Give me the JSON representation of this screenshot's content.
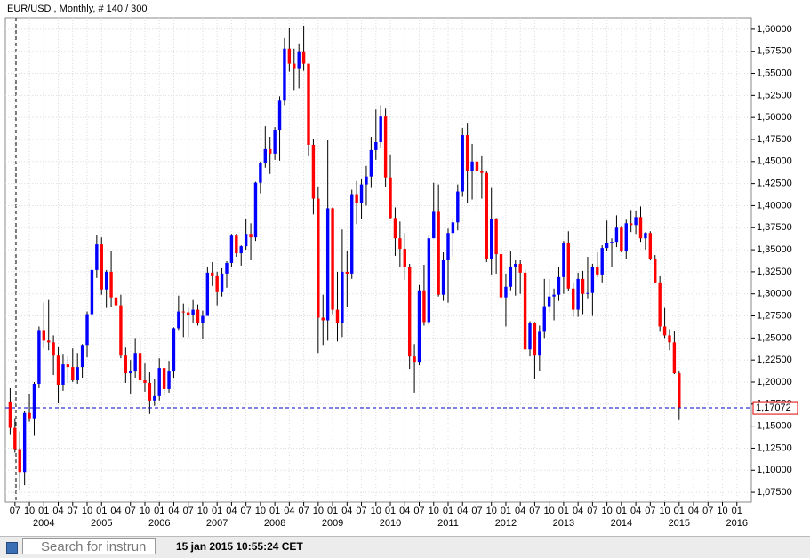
{
  "chart_data": {
    "type": "candlestick",
    "title": "EUR/USD , Monthly, # 140 / 300",
    "x": [
      "2003-06",
      "2003-07",
      "2003-08",
      "2003-09",
      "2003-10",
      "2003-11",
      "2003-12",
      "2004-01",
      "2004-02",
      "2004-03",
      "2004-04",
      "2004-05",
      "2004-06",
      "2004-07",
      "2004-08",
      "2004-09",
      "2004-10",
      "2004-11",
      "2004-12",
      "2005-01",
      "2005-02",
      "2005-03",
      "2005-04",
      "2005-05",
      "2005-06",
      "2005-07",
      "2005-08",
      "2005-09",
      "2005-10",
      "2005-11",
      "2005-12",
      "2006-01",
      "2006-02",
      "2006-03",
      "2006-04",
      "2006-05",
      "2006-06",
      "2006-07",
      "2006-08",
      "2006-09",
      "2006-10",
      "2006-11",
      "2006-12",
      "2007-01",
      "2007-02",
      "2007-03",
      "2007-04",
      "2007-05",
      "2007-06",
      "2007-07",
      "2007-08",
      "2007-09",
      "2007-10",
      "2007-11",
      "2007-12",
      "2008-01",
      "2008-02",
      "2008-03",
      "2008-04",
      "2008-05",
      "2008-06",
      "2008-07",
      "2008-08",
      "2008-09",
      "2008-10",
      "2008-11",
      "2008-12",
      "2009-01",
      "2009-02",
      "2009-03",
      "2009-04",
      "2009-05",
      "2009-06",
      "2009-07",
      "2009-08",
      "2009-09",
      "2009-10",
      "2009-11",
      "2009-12",
      "2010-01",
      "2010-02",
      "2010-03",
      "2010-04",
      "2010-05",
      "2010-06",
      "2010-07",
      "2010-08",
      "2010-09",
      "2010-10",
      "2010-11",
      "2010-12",
      "2011-01",
      "2011-02",
      "2011-03",
      "2011-04",
      "2011-05",
      "2011-06",
      "2011-07",
      "2011-08",
      "2011-09",
      "2011-10",
      "2011-11",
      "2011-12",
      "2012-01",
      "2012-02",
      "2012-03",
      "2012-04",
      "2012-05",
      "2012-06",
      "2012-07",
      "2012-08",
      "2012-09",
      "2012-10",
      "2012-11",
      "2012-12",
      "2013-01",
      "2013-02",
      "2013-03",
      "2013-04",
      "2013-05",
      "2013-06",
      "2013-07",
      "2013-08",
      "2013-09",
      "2013-10",
      "2013-11",
      "2013-12",
      "2014-01",
      "2014-02",
      "2014-03",
      "2014-04",
      "2014-05",
      "2014-06",
      "2014-07",
      "2014-08",
      "2014-09",
      "2014-10",
      "2014-11",
      "2014-12",
      "2015-01"
    ],
    "open": [
      1.178,
      1.148,
      1.124,
      1.098,
      1.165,
      1.159,
      1.198,
      1.259,
      1.247,
      1.245,
      1.23,
      1.197,
      1.22,
      1.217,
      1.202,
      1.217,
      1.242,
      1.277,
      1.327,
      1.356,
      1.305,
      1.325,
      1.296,
      1.287,
      1.23,
      1.21,
      1.212,
      1.233,
      1.202,
      1.199,
      1.179,
      1.184,
      1.216,
      1.192,
      1.212,
      1.261,
      1.28,
      1.279,
      1.276,
      1.282,
      1.267,
      1.275,
      1.324,
      1.32,
      1.302,
      1.323,
      1.335,
      1.366,
      1.346,
      1.354,
      1.368,
      1.364,
      1.426,
      1.448,
      1.464,
      1.459,
      1.486,
      1.519,
      1.578,
      1.561,
      1.555,
      1.575,
      1.561,
      1.469,
      1.408,
      1.273,
      1.27,
      1.397,
      1.282,
      1.267,
      1.325,
      1.323,
      1.413,
      1.403,
      1.424,
      1.433,
      1.463,
      1.472,
      1.501,
      1.432,
      1.386,
      1.363,
      1.351,
      1.33,
      1.229,
      1.223,
      1.304,
      1.268,
      1.363,
      1.393,
      1.299,
      1.338,
      1.369,
      1.381,
      1.416,
      1.48,
      1.439,
      1.45,
      1.439,
      1.437,
      1.339,
      1.385,
      1.345,
      1.296,
      1.308,
      1.331,
      1.334,
      1.324,
      1.237,
      1.267,
      1.23,
      1.257,
      1.286,
      1.297,
      1.299,
      1.319,
      1.358,
      1.306,
      1.282,
      1.317,
      1.3,
      1.301,
      1.33,
      1.322,
      1.352,
      1.358,
      1.359,
      1.375,
      1.348,
      1.38,
      1.378,
      1.387,
      1.363,
      1.369,
      1.339,
      1.313,
      1.263,
      1.253,
      1.245,
      1.21
    ],
    "high": [
      1.193,
      1.159,
      1.144,
      1.167,
      1.187,
      1.2,
      1.263,
      1.29,
      1.293,
      1.253,
      1.24,
      1.232,
      1.229,
      1.238,
      1.233,
      1.243,
      1.28,
      1.33,
      1.367,
      1.364,
      1.327,
      1.349,
      1.315,
      1.299,
      1.239,
      1.225,
      1.25,
      1.248,
      1.221,
      1.211,
      1.203,
      1.227,
      1.216,
      1.224,
      1.262,
      1.298,
      1.289,
      1.284,
      1.293,
      1.288,
      1.281,
      1.33,
      1.336,
      1.325,
      1.329,
      1.337,
      1.368,
      1.368,
      1.355,
      1.385,
      1.38,
      1.427,
      1.45,
      1.49,
      1.478,
      1.489,
      1.524,
      1.59,
      1.601,
      1.578,
      1.584,
      1.604,
      1.561,
      1.476,
      1.421,
      1.299,
      1.474,
      1.398,
      1.325,
      1.373,
      1.349,
      1.418,
      1.428,
      1.43,
      1.445,
      1.478,
      1.509,
      1.514,
      1.51,
      1.458,
      1.398,
      1.382,
      1.369,
      1.334,
      1.243,
      1.31,
      1.333,
      1.367,
      1.426,
      1.424,
      1.347,
      1.374,
      1.386,
      1.424,
      1.488,
      1.494,
      1.47,
      1.458,
      1.456,
      1.439,
      1.42,
      1.386,
      1.353,
      1.323,
      1.349,
      1.338,
      1.338,
      1.328,
      1.269,
      1.268,
      1.264,
      1.317,
      1.317,
      1.306,
      1.331,
      1.36,
      1.371,
      1.312,
      1.324,
      1.326,
      1.342,
      1.334,
      1.347,
      1.355,
      1.383,
      1.363,
      1.389,
      1.377,
      1.384,
      1.395,
      1.394,
      1.399,
      1.37,
      1.371,
      1.344,
      1.32,
      1.284,
      1.26,
      1.258,
      1.212
    ],
    "low": [
      1.14,
      1.12,
      1.077,
      1.083,
      1.155,
      1.139,
      1.193,
      1.238,
      1.236,
      1.208,
      1.176,
      1.19,
      1.199,
      1.2,
      1.198,
      1.205,
      1.228,
      1.275,
      1.318,
      1.299,
      1.284,
      1.285,
      1.28,
      1.227,
      1.199,
      1.187,
      1.205,
      1.2,
      1.189,
      1.164,
      1.173,
      1.179,
      1.186,
      1.188,
      1.205,
      1.259,
      1.251,
      1.251,
      1.267,
      1.264,
      1.249,
      1.275,
      1.309,
      1.287,
      1.297,
      1.307,
      1.33,
      1.342,
      1.332,
      1.35,
      1.338,
      1.36,
      1.414,
      1.443,
      1.436,
      1.452,
      1.451,
      1.514,
      1.552,
      1.531,
      1.533,
      1.553,
      1.456,
      1.39,
      1.233,
      1.242,
      1.247,
      1.277,
      1.246,
      1.251,
      1.285,
      1.317,
      1.379,
      1.385,
      1.4,
      1.42,
      1.452,
      1.465,
      1.421,
      1.385,
      1.343,
      1.33,
      1.316,
      1.215,
      1.188,
      1.219,
      1.264,
      1.265,
      1.365,
      1.297,
      1.292,
      1.29,
      1.342,
      1.372,
      1.41,
      1.403,
      1.407,
      1.395,
      1.408,
      1.336,
      1.322,
      1.323,
      1.285,
      1.263,
      1.304,
      1.298,
      1.3,
      1.236,
      1.229,
      1.204,
      1.213,
      1.25,
      1.279,
      1.27,
      1.292,
      1.3,
      1.303,
      1.274,
      1.274,
      1.277,
      1.295,
      1.275,
      1.319,
      1.313,
      1.349,
      1.33,
      1.353,
      1.347,
      1.339,
      1.37,
      1.368,
      1.359,
      1.35,
      1.338,
      1.312,
      1.257,
      1.25,
      1.236,
      1.209,
      1.157
    ],
    "close": [
      1.148,
      1.124,
      1.098,
      1.165,
      1.159,
      1.198,
      1.259,
      1.247,
      1.245,
      1.23,
      1.197,
      1.22,
      1.217,
      1.202,
      1.217,
      1.242,
      1.277,
      1.327,
      1.356,
      1.305,
      1.325,
      1.296,
      1.287,
      1.23,
      1.21,
      1.212,
      1.233,
      1.202,
      1.199,
      1.179,
      1.184,
      1.216,
      1.192,
      1.212,
      1.261,
      1.28,
      1.279,
      1.276,
      1.282,
      1.267,
      1.275,
      1.324,
      1.32,
      1.302,
      1.323,
      1.335,
      1.366,
      1.346,
      1.354,
      1.368,
      1.364,
      1.426,
      1.448,
      1.464,
      1.459,
      1.486,
      1.519,
      1.578,
      1.561,
      1.555,
      1.575,
      1.561,
      1.469,
      1.408,
      1.273,
      1.27,
      1.397,
      1.282,
      1.267,
      1.325,
      1.323,
      1.413,
      1.403,
      1.424,
      1.433,
      1.463,
      1.472,
      1.501,
      1.432,
      1.386,
      1.363,
      1.351,
      1.33,
      1.229,
      1.223,
      1.304,
      1.268,
      1.363,
      1.393,
      1.299,
      1.338,
      1.369,
      1.381,
      1.416,
      1.48,
      1.439,
      1.45,
      1.439,
      1.437,
      1.339,
      1.385,
      1.345,
      1.296,
      1.308,
      1.331,
      1.334,
      1.324,
      1.237,
      1.267,
      1.23,
      1.257,
      1.286,
      1.297,
      1.299,
      1.319,
      1.358,
      1.306,
      1.282,
      1.317,
      1.3,
      1.301,
      1.33,
      1.322,
      1.352,
      1.358,
      1.359,
      1.375,
      1.348,
      1.38,
      1.378,
      1.387,
      1.363,
      1.369,
      1.339,
      1.313,
      1.263,
      1.253,
      1.245,
      1.21,
      1.17072
    ],
    "up_color": "#0000ff",
    "down_color": "#ff0000",
    "ylim": [
      1.064,
      1.613
    ],
    "yticks": [
      {
        "value": 1.6,
        "label": "1,60000"
      },
      {
        "value": 1.575,
        "label": "1,57500"
      },
      {
        "value": 1.55,
        "label": "1,55000"
      },
      {
        "value": 1.525,
        "label": "1,52500"
      },
      {
        "value": 1.5,
        "label": "1,50000"
      },
      {
        "value": 1.475,
        "label": "1,47500"
      },
      {
        "value": 1.45,
        "label": "1,45000"
      },
      {
        "value": 1.425,
        "label": "1,42500"
      },
      {
        "value": 1.4,
        "label": "1,40000"
      },
      {
        "value": 1.375,
        "label": "1,37500"
      },
      {
        "value": 1.35,
        "label": "1,35000"
      },
      {
        "value": 1.325,
        "label": "1,32500"
      },
      {
        "value": 1.3,
        "label": "1,30000"
      },
      {
        "value": 1.275,
        "label": "1,27500"
      },
      {
        "value": 1.25,
        "label": "1,25000"
      },
      {
        "value": 1.225,
        "label": "1,22500"
      },
      {
        "value": 1.2,
        "label": "1,20000"
      },
      {
        "value": 1.175,
        "label": "1,17500"
      },
      {
        "value": 1.15,
        "label": "1,15000"
      },
      {
        "value": 1.125,
        "label": "1,12500"
      },
      {
        "value": 1.1,
        "label": "1,10000"
      },
      {
        "value": 1.075,
        "label": "1,07500"
      }
    ],
    "xlim": [
      "2003-05",
      "2016-04"
    ],
    "xticks": [
      {
        "value": "2003-07",
        "label": "07"
      },
      {
        "value": "2003-10",
        "label": "10"
      },
      {
        "value": "2004-01",
        "label": "01"
      },
      {
        "value": "2004-04",
        "label": "04"
      },
      {
        "value": "2004-07",
        "label": "07"
      },
      {
        "value": "2004-10",
        "label": "10"
      },
      {
        "value": "2005-01",
        "label": "01"
      },
      {
        "value": "2005-04",
        "label": "04"
      },
      {
        "value": "2005-07",
        "label": "07"
      },
      {
        "value": "2005-10",
        "label": "10"
      },
      {
        "value": "2006-01",
        "label": "01"
      },
      {
        "value": "2006-04",
        "label": "04"
      },
      {
        "value": "2006-07",
        "label": "07"
      },
      {
        "value": "2006-10",
        "label": "10"
      },
      {
        "value": "2007-01",
        "label": "01"
      },
      {
        "value": "2007-04",
        "label": "04"
      },
      {
        "value": "2007-07",
        "label": "07"
      },
      {
        "value": "2007-10",
        "label": "10"
      },
      {
        "value": "2008-01",
        "label": "01"
      },
      {
        "value": "2008-04",
        "label": "04"
      },
      {
        "value": "2008-07",
        "label": "07"
      },
      {
        "value": "2008-10",
        "label": "10"
      },
      {
        "value": "2009-01",
        "label": "01"
      },
      {
        "value": "2009-04",
        "label": "04"
      },
      {
        "value": "2009-07",
        "label": "07"
      },
      {
        "value": "2009-10",
        "label": "10"
      },
      {
        "value": "2010-01",
        "label": "01"
      },
      {
        "value": "2010-04",
        "label": "04"
      },
      {
        "value": "2010-07",
        "label": "07"
      },
      {
        "value": "2010-10",
        "label": "10"
      },
      {
        "value": "2011-01",
        "label": "01"
      },
      {
        "value": "2011-04",
        "label": "04"
      },
      {
        "value": "2011-07",
        "label": "07"
      },
      {
        "value": "2011-10",
        "label": "10"
      },
      {
        "value": "2012-01",
        "label": "01"
      },
      {
        "value": "2012-04",
        "label": "04"
      },
      {
        "value": "2012-07",
        "label": "07"
      },
      {
        "value": "2012-10",
        "label": "10"
      },
      {
        "value": "2013-01",
        "label": "01"
      },
      {
        "value": "2013-04",
        "label": "04"
      },
      {
        "value": "2013-07",
        "label": "07"
      },
      {
        "value": "2013-10",
        "label": "10"
      },
      {
        "value": "2014-01",
        "label": "01"
      },
      {
        "value": "2014-04",
        "label": "04"
      },
      {
        "value": "2014-07",
        "label": "07"
      },
      {
        "value": "2014-10",
        "label": "10"
      },
      {
        "value": "2015-01",
        "label": "01"
      },
      {
        "value": "2015-04",
        "label": "04"
      },
      {
        "value": "2015-07",
        "label": "07"
      },
      {
        "value": "2015-10",
        "label": "10"
      },
      {
        "value": "2016-01",
        "label": "01"
      }
    ],
    "year_labels": [
      {
        "value": "2004-01",
        "label": "2004"
      },
      {
        "value": "2005-01",
        "label": "2005"
      },
      {
        "value": "2006-01",
        "label": "2006"
      },
      {
        "value": "2007-01",
        "label": "2007"
      },
      {
        "value": "2008-01",
        "label": "2008"
      },
      {
        "value": "2009-01",
        "label": "2009"
      },
      {
        "value": "2010-01",
        "label": "2010"
      },
      {
        "value": "2011-01",
        "label": "2011"
      },
      {
        "value": "2012-01",
        "label": "2012"
      },
      {
        "value": "2013-01",
        "label": "2013"
      },
      {
        "value": "2014-01",
        "label": "2014"
      },
      {
        "value": "2015-01",
        "label": "2015"
      },
      {
        "value": "2016-01",
        "label": "2016"
      }
    ],
    "current_price": {
      "value": 1.17072,
      "label": "1,17072"
    },
    "grid": true
  },
  "status_bar": {
    "search_placeholder": "Search for instrun",
    "timestamp": "15 jan 2015 10:55:24 CET"
  }
}
